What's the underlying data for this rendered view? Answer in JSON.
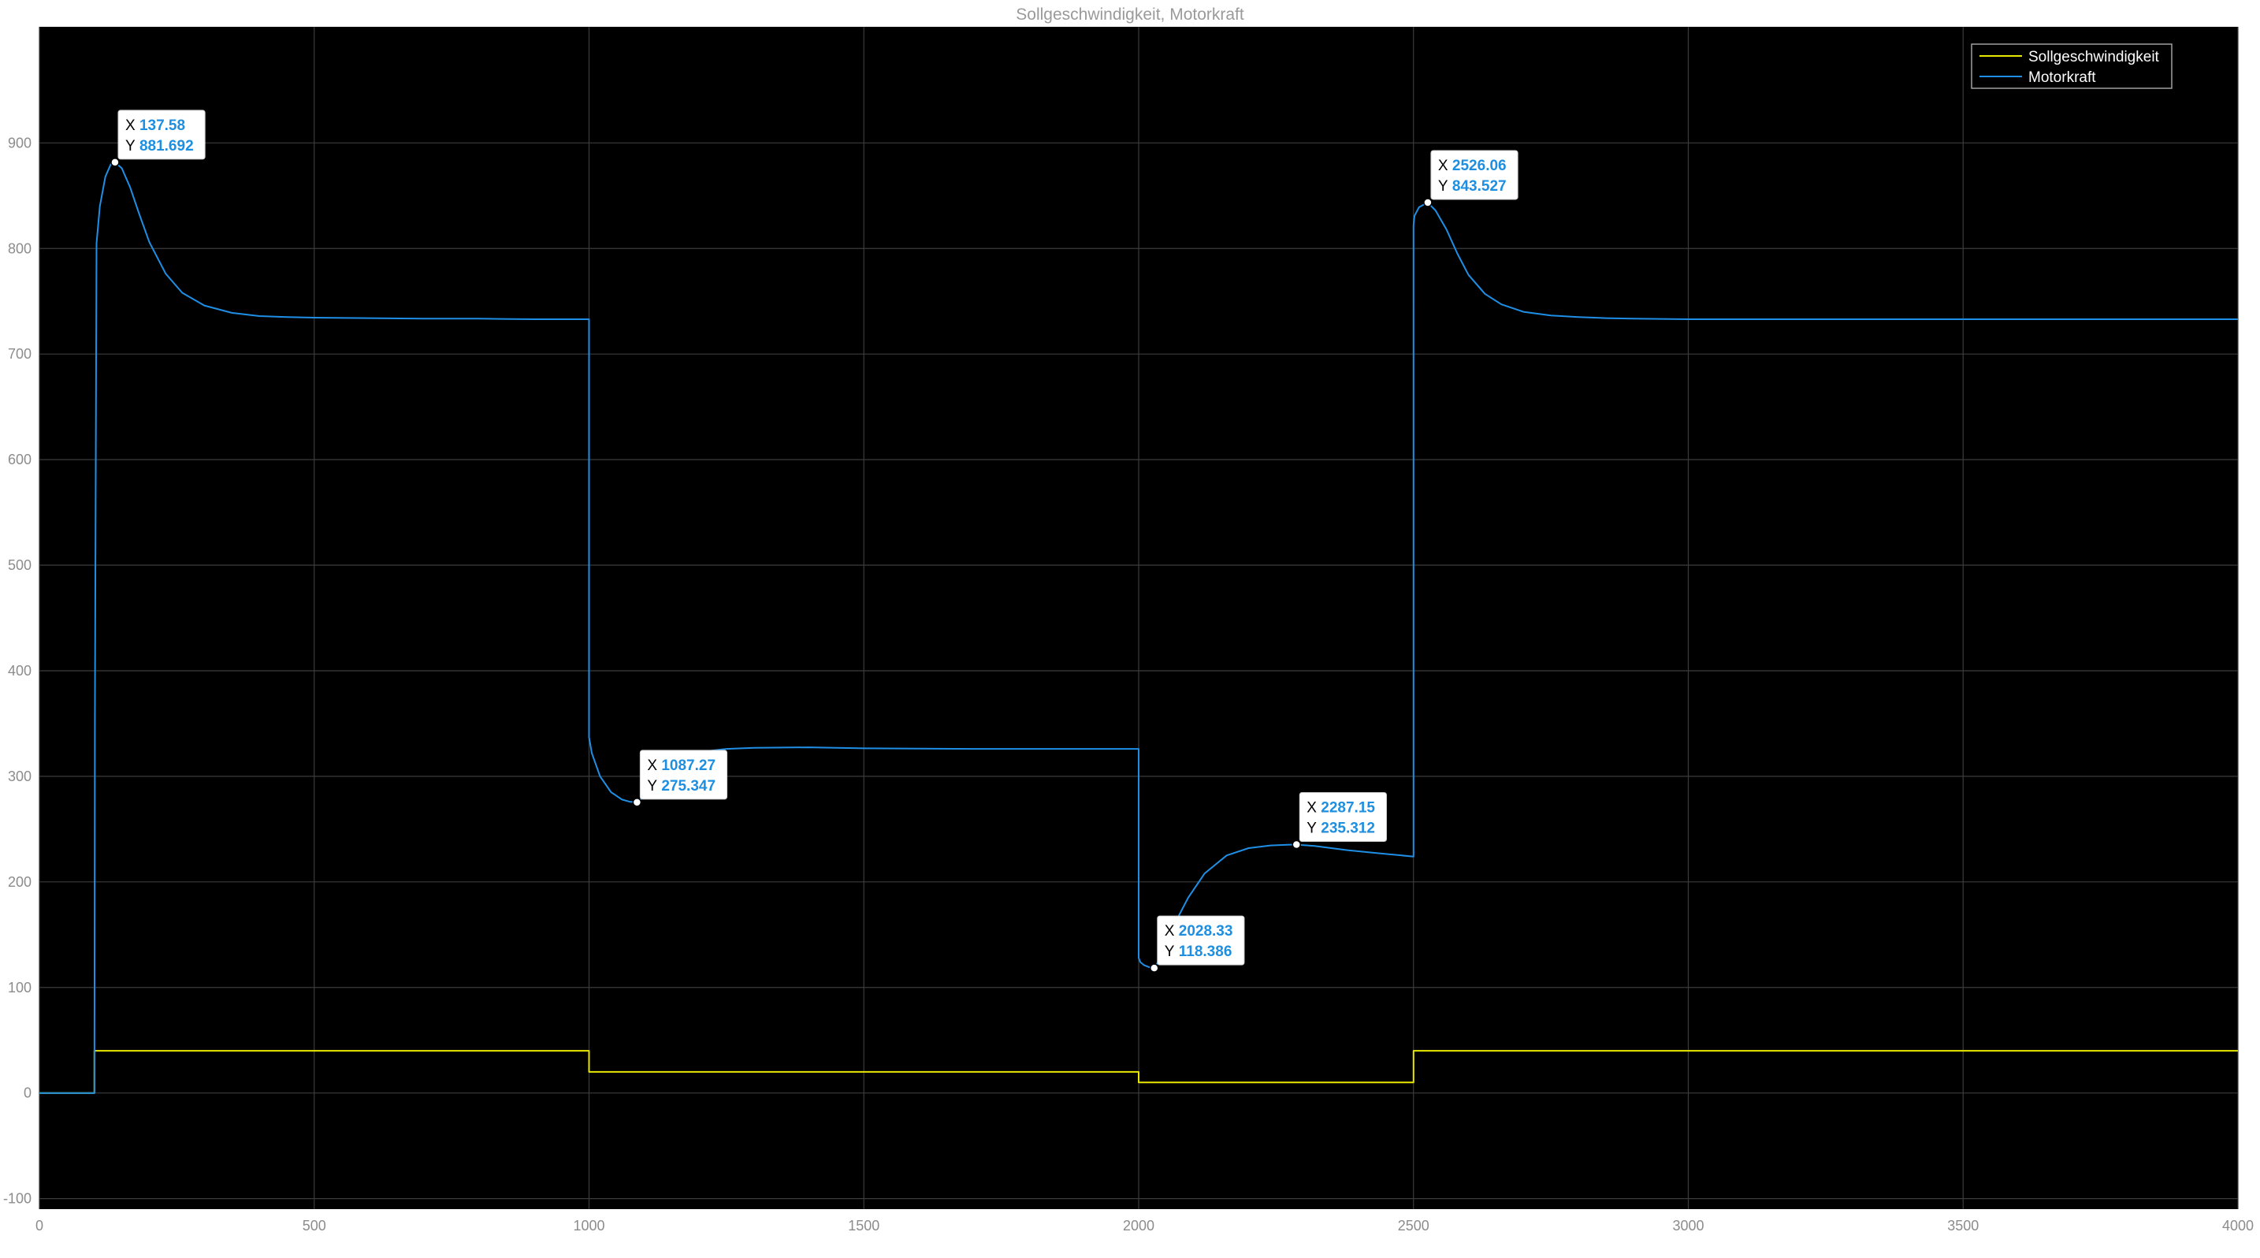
{
  "title": "Sollgeschwindigkeit, Motorkraft",
  "colors": {
    "figure_background": "#ffffff",
    "axes_background": "#000000",
    "grid": "#3c3c3c",
    "tick_label": "#8c8c8c",
    "title": "#9a9a9a",
    "legend_border": "#a0a0a0",
    "tooltip_background": "#ffffff",
    "tooltip_value": "#1e8fe0"
  },
  "chart_data": {
    "type": "line",
    "title": "Sollgeschwindigkeit, Motorkraft",
    "xlabel": "",
    "ylabel": "",
    "xlim": [
      0,
      4000
    ],
    "ylim": [
      -110,
      1010
    ],
    "x_ticks": [
      0,
      500,
      1000,
      1500,
      2000,
      2500,
      3000,
      3500,
      4000
    ],
    "y_ticks": [
      -100,
      0,
      100,
      200,
      300,
      400,
      500,
      600,
      700,
      800,
      900
    ],
    "grid": true,
    "legend_placement": "top-right",
    "series": [
      {
        "name": "Sollgeschwindigkeit",
        "color": "#e8e800",
        "x": [
          0,
          100,
          100,
          1000,
          1000,
          2000,
          2000,
          2500,
          2500,
          4000
        ],
        "y": [
          0,
          0,
          40,
          40,
          20,
          20,
          10,
          10,
          40,
          40
        ]
      },
      {
        "name": "Motorkraft",
        "color": "#1f8fe6",
        "x": [
          0,
          100,
          101,
          104,
          110,
          120,
          130,
          137.58,
          150,
          165,
          180,
          200,
          230,
          260,
          300,
          350,
          400,
          450,
          500,
          600,
          700,
          800,
          900,
          1000,
          1000,
          1005,
          1020,
          1040,
          1060,
          1075,
          1087.27,
          1100,
          1120,
          1140,
          1170,
          1200,
          1250,
          1300,
          1400,
          1500,
          1700,
          1900,
          2000,
          2000,
          2003,
          2010,
          2020,
          2028.33,
          2040,
          2060,
          2090,
          2120,
          2160,
          2200,
          2240,
          2270,
          2287.15,
          2320,
          2380,
          2440,
          2500,
          2500,
          2502,
          2510,
          2520,
          2526.06,
          2540,
          2560,
          2580,
          2600,
          2630,
          2660,
          2700,
          2750,
          2800,
          2850,
          2900,
          3000,
          3200,
          3500,
          3800,
          4000
        ],
        "y": [
          0,
          0,
          350,
          805,
          840,
          868,
          880,
          881.692,
          876,
          858,
          835,
          806,
          776,
          758,
          746,
          739,
          736,
          735,
          734.5,
          734,
          733.5,
          733.5,
          733,
          733,
          337,
          322,
          300,
          285,
          278,
          275.8,
          275.347,
          281,
          296,
          308,
          318,
          323,
          326,
          327,
          327.5,
          326.5,
          326,
          326,
          326,
          128,
          124,
          121,
          119,
          118.386,
          128,
          155,
          185,
          208,
          225,
          232,
          234.5,
          235.2,
          235.312,
          234,
          230,
          227,
          224,
          822,
          831,
          839,
          842,
          843.527,
          836,
          818,
          795,
          775,
          757,
          747,
          740,
          736.5,
          735,
          734,
          733.5,
          733,
          733,
          733,
          733,
          733
        ]
      }
    ],
    "datatips": [
      {
        "x_label": "X",
        "x": "137.58",
        "y_label": "Y",
        "y": "881.692"
      },
      {
        "x_label": "X",
        "x": "1087.27",
        "y_label": "Y",
        "y": "275.347"
      },
      {
        "x_label": "X",
        "x": "2028.33",
        "y_label": "Y",
        "y": "118.386"
      },
      {
        "x_label": "X",
        "x": "2287.15",
        "y_label": "Y",
        "y": "235.312"
      },
      {
        "x_label": "X",
        "x": "2526.06",
        "y_label": "Y",
        "y": "843.527"
      }
    ]
  }
}
